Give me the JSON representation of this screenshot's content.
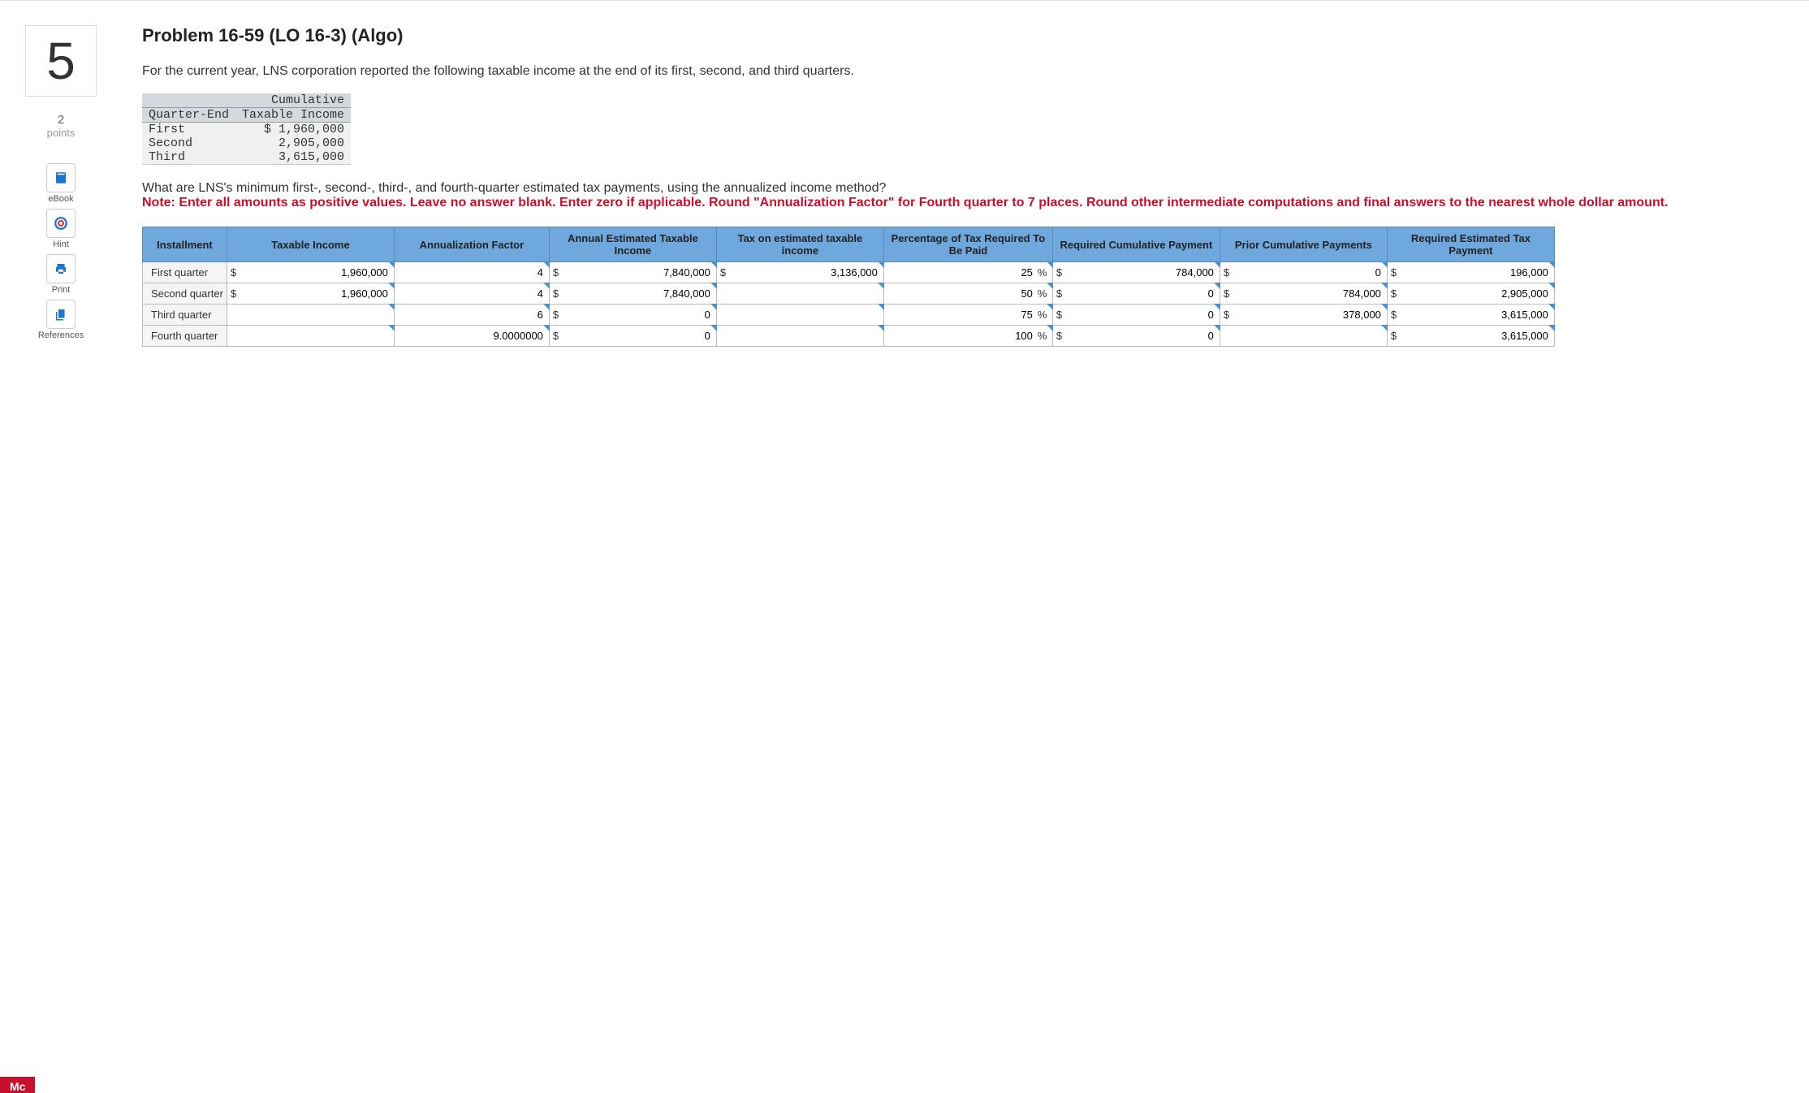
{
  "question": {
    "number": "5",
    "points_value": "2",
    "points_label": "points",
    "title": "Problem 16-59 (LO 16-3) (Algo)",
    "intro": "For the current year, LNS corporation reported the following taxable income at the end of its first, second, and third quarters.",
    "prompt": "What are LNS's minimum first-, second-, third-, and fourth-quarter estimated tax payments, using the annualized income method?",
    "note": "Note: Enter all amounts as positive values. Leave no answer blank. Enter zero if applicable. Round \"Annualization Factor\" for Fourth quarter to 7 places. Round other intermediate computations and final answers to the nearest whole dollar amount."
  },
  "tools": {
    "ebook": "eBook",
    "hint": "Hint",
    "print": "Print",
    "references": "References"
  },
  "income_table": {
    "col1_header": "Quarter-End",
    "col2_header_line1": "Cumulative",
    "col2_header_line2": "Taxable Income",
    "rows": [
      {
        "q": "First",
        "v": "$ 1,960,000"
      },
      {
        "q": "Second",
        "v": "  2,905,000"
      },
      {
        "q": "Third",
        "v": "  3,615,000"
      }
    ]
  },
  "answer": {
    "headers": {
      "c0": "Installment",
      "c1": "Taxable Income",
      "c2": "Annualization Factor",
      "c3": "Annual Estimated Taxable Income",
      "c4": "Tax on estimated taxable income",
      "c5": "Percentage of Tax Required To Be Paid",
      "c6": "Required Cumulative Payment",
      "c7": "Prior Cumulative Payments",
      "c8": "Required Estimated Tax Payment"
    },
    "rows": [
      {
        "label": "First quarter",
        "taxable": {
          "cur": "$",
          "val": "1,960,000"
        },
        "factor": "4",
        "annual": {
          "cur": "$",
          "val": "7,840,000"
        },
        "taxon": {
          "cur": "$",
          "val": "3,136,000"
        },
        "pct": "25",
        "reqcum": {
          "cur": "$",
          "val": "784,000"
        },
        "prior": {
          "cur": "$",
          "val": "0"
        },
        "reqest": {
          "cur": "$",
          "val": "196,000"
        }
      },
      {
        "label": "Second quarter",
        "taxable": {
          "cur": "$",
          "val": "1,960,000"
        },
        "factor": "4",
        "annual": {
          "cur": "$",
          "val": "7,840,000"
        },
        "taxon": {
          "cur": "",
          "val": ""
        },
        "pct": "50",
        "reqcum": {
          "cur": "$",
          "val": "0"
        },
        "prior": {
          "cur": "$",
          "val": "784,000"
        },
        "reqest": {
          "cur": "$",
          "val": "2,905,000"
        }
      },
      {
        "label": "Third quarter",
        "taxable": {
          "cur": "",
          "val": ""
        },
        "factor": "6",
        "annual": {
          "cur": "$",
          "val": "0"
        },
        "taxon": {
          "cur": "",
          "val": ""
        },
        "pct": "75",
        "reqcum": {
          "cur": "$",
          "val": "0"
        },
        "prior": {
          "cur": "$",
          "val": "378,000"
        },
        "reqest": {
          "cur": "$",
          "val": "3,615,000"
        }
      },
      {
        "label": "Fourth quarter",
        "taxable": {
          "cur": "",
          "val": ""
        },
        "factor": "9.0000000",
        "annual": {
          "cur": "$",
          "val": "0"
        },
        "taxon": {
          "cur": "",
          "val": ""
        },
        "pct": "100",
        "reqcum": {
          "cur": "$",
          "val": "0"
        },
        "prior": {
          "cur": "",
          "val": ""
        },
        "reqest": {
          "cur": "$",
          "val": "3,615,000"
        }
      }
    ]
  },
  "footer": "Mc"
}
